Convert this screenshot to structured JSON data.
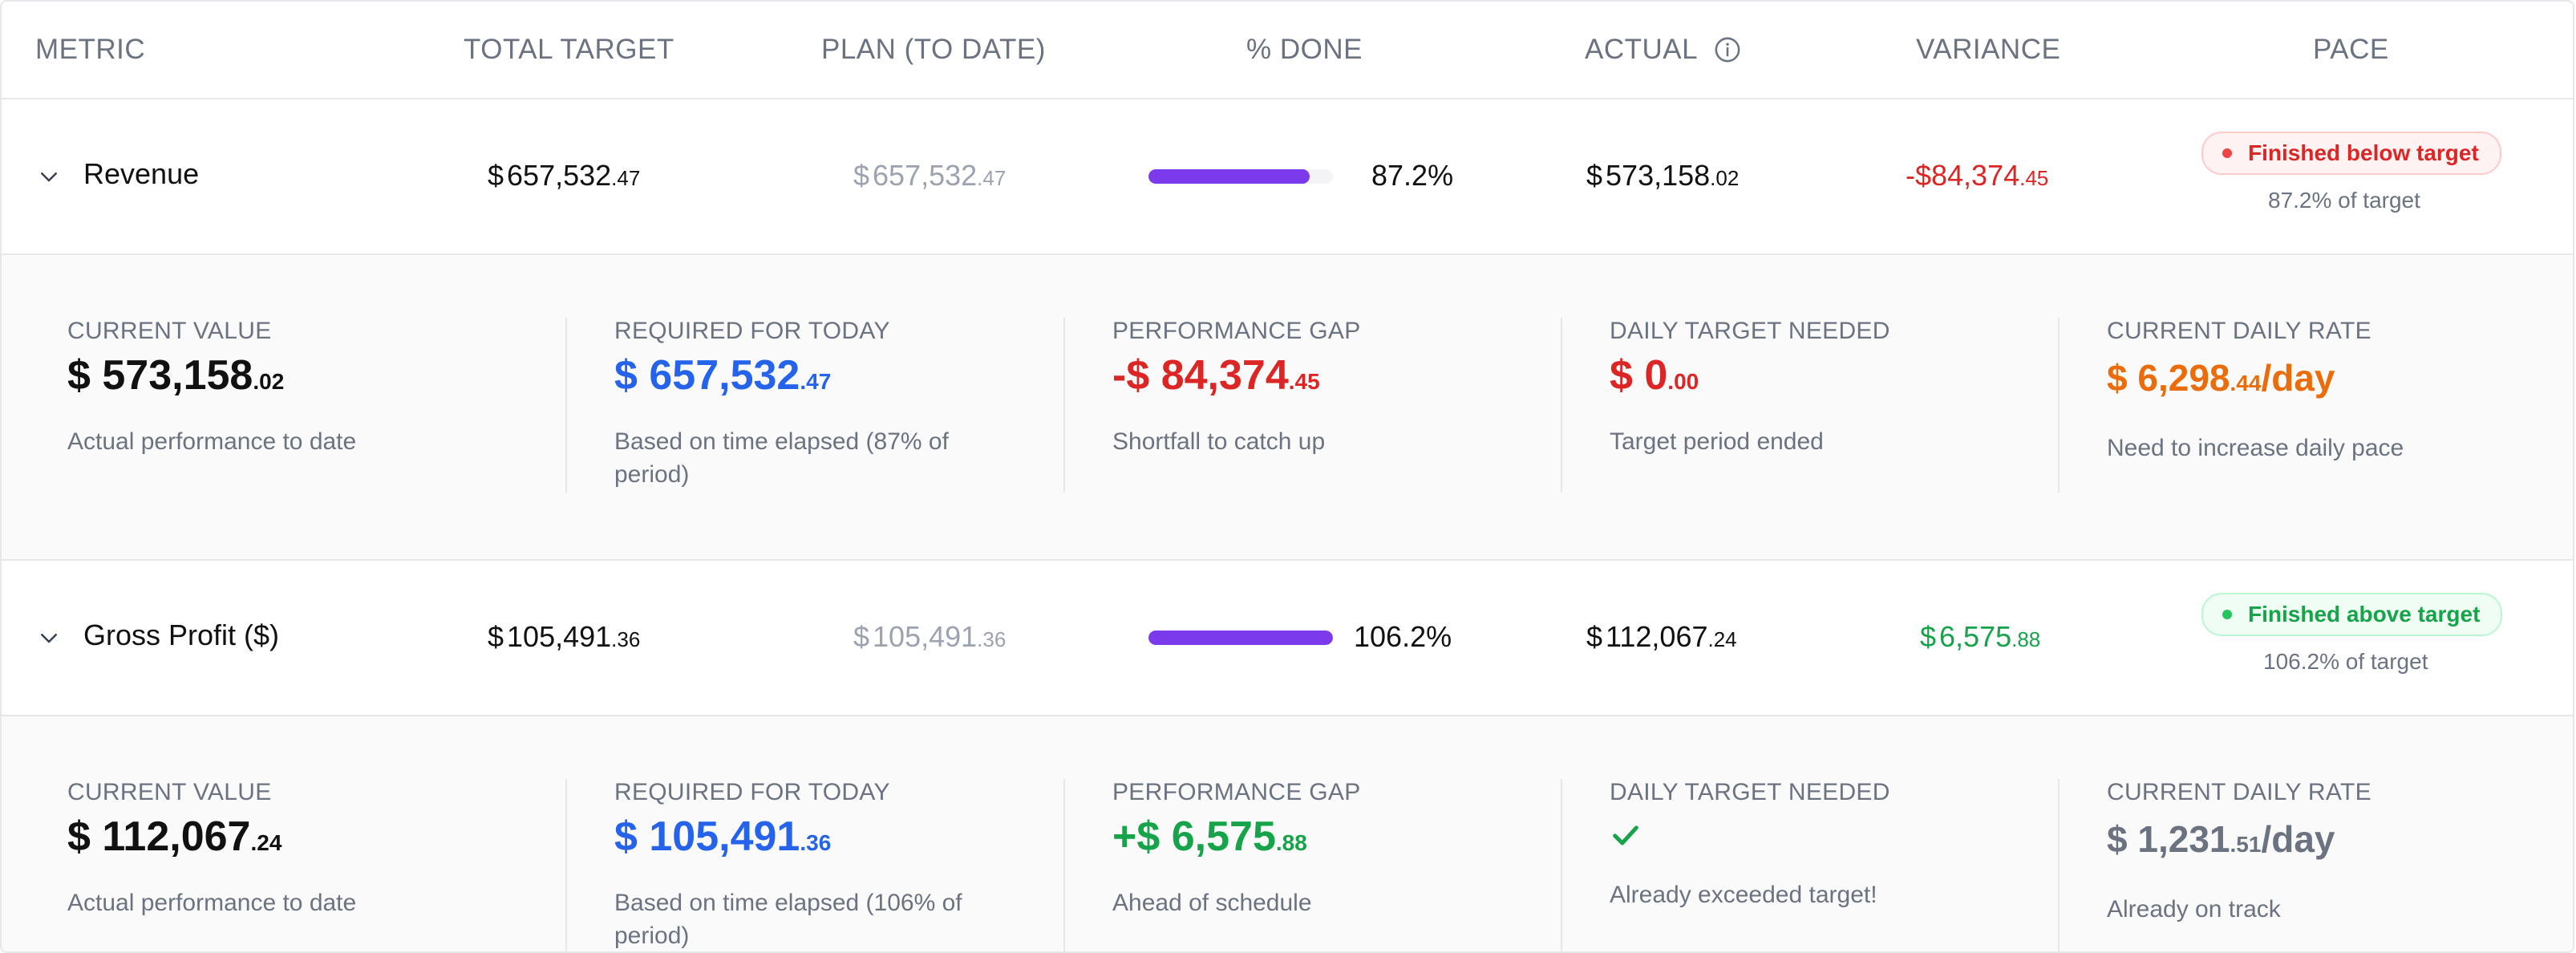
{
  "columns": {
    "metric": "METRIC",
    "total_target": "TOTAL TARGET",
    "plan": "PLAN (TO DATE)",
    "pct_done": "% DONE",
    "actual": "ACTUAL",
    "variance": "VARIANCE",
    "pace": "PACE"
  },
  "icons": {
    "actual_info": "info-icon",
    "expand": "chevron-down-icon",
    "target_met": "check-icon"
  },
  "colors": {
    "progress": "#7c3aed",
    "negative": "#dc2626",
    "positive": "#16a34a",
    "blue": "#2563eb",
    "orange": "#ea6c0a"
  },
  "rows": [
    {
      "name": "Revenue",
      "total_target": {
        "cur": "$",
        "int": "657,532",
        "cents": ".47"
      },
      "plan": {
        "cur": "$",
        "int": "657,532",
        "cents": ".47"
      },
      "progress": 0.872,
      "pct_done": "87.2%",
      "actual": {
        "cur": "$",
        "int": "573,158",
        "cents": ".02"
      },
      "variance": {
        "cur": "-$",
        "int": "84,374",
        "cents": ".45"
      },
      "pace_badge": "Finished below target",
      "pace_sub": "87.2% of target",
      "detail": {
        "current_value": {
          "label": "CURRENT VALUE",
          "cur": "$",
          "int": "573,158",
          "cents": ".02",
          "note": "Actual performance to date"
        },
        "required": {
          "label": "REQUIRED FOR TODAY",
          "cur": "$",
          "int": "657,532",
          "cents": ".47",
          "note_line1": "Based on time elapsed (87% of",
          "note_line2": "period)"
        },
        "gap": {
          "label": "PERFORMANCE GAP",
          "cur": "-$",
          "int": "84,374",
          "cents": ".45",
          "note": "Shortfall to catch up"
        },
        "daily_needed": {
          "label": "DAILY TARGET NEEDED",
          "cur": "$",
          "int": "0",
          "cents": ".00",
          "note": "Target period ended"
        },
        "daily_rate": {
          "label": "CURRENT DAILY RATE",
          "cur": "$",
          "int": "6,298",
          "cents": ".44",
          "suffix": "/day",
          "note": "Need to increase daily pace"
        }
      }
    },
    {
      "name": "Gross Profit ($)",
      "total_target": {
        "cur": "$",
        "int": "105,491",
        "cents": ".36"
      },
      "plan": {
        "cur": "$",
        "int": "105,491",
        "cents": ".36"
      },
      "progress": 1.0,
      "pct_done": "106.2%",
      "actual": {
        "cur": "$",
        "int": "112,067",
        "cents": ".24"
      },
      "variance": {
        "cur": "$",
        "int": "6,575",
        "cents": ".88"
      },
      "pace_badge": "Finished above target",
      "pace_sub": "106.2% of target",
      "detail": {
        "current_value": {
          "label": "CURRENT VALUE",
          "cur": "$",
          "int": "112,067",
          "cents": ".24",
          "note": "Actual performance to date"
        },
        "required": {
          "label": "REQUIRED FOR TODAY",
          "cur": "$",
          "int": "105,491",
          "cents": ".36",
          "note_line1": "Based on time elapsed (106% of",
          "note_line2": "period)"
        },
        "gap": {
          "label": "PERFORMANCE GAP",
          "cur": "+$",
          "int": "6,575",
          "cents": ".88",
          "note": "Ahead of schedule"
        },
        "daily_needed": {
          "label": "DAILY TARGET NEEDED",
          "note": "Already exceeded target!"
        },
        "daily_rate": {
          "label": "CURRENT DAILY RATE",
          "cur": "$",
          "int": "1,231",
          "cents": ".51",
          "suffix": "/day",
          "note": "Already on track"
        }
      }
    }
  ]
}
